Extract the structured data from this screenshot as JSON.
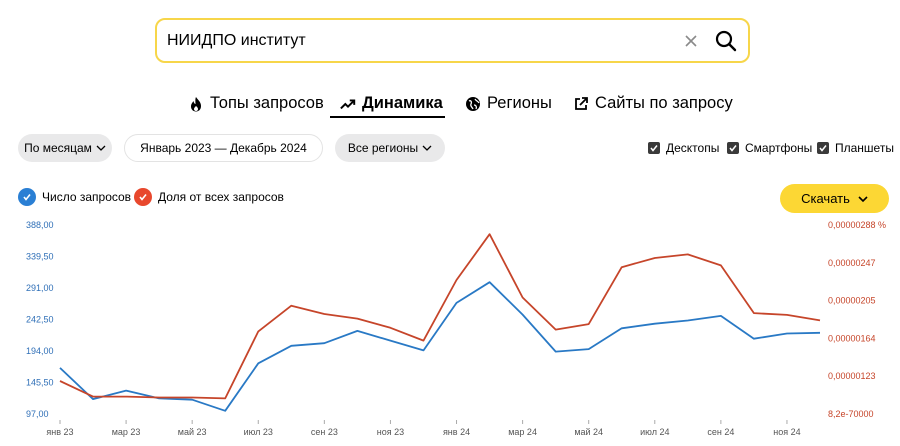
{
  "search": {
    "query": "НИИДПО институт"
  },
  "tabs": [
    {
      "label": "Топы запросов",
      "icon": "flame-icon"
    },
    {
      "label": "Динамика",
      "icon": "trend-icon"
    },
    {
      "label": "Регионы",
      "icon": "globe-icon"
    },
    {
      "label": "Сайты по запросу",
      "icon": "external-link-icon"
    }
  ],
  "filters": {
    "period": "По месяцам",
    "range": "Январь 2023 — Декабрь 2024",
    "region": "Все регионы"
  },
  "devices": [
    {
      "label": "Десктопы",
      "checked": true
    },
    {
      "label": "Смартфоны",
      "checked": true
    },
    {
      "label": "Планшеты",
      "checked": true
    }
  ],
  "legend": {
    "count": {
      "label": "Число запросов",
      "color": "#2a7fd4"
    },
    "share": {
      "label": "Доля от всех запросов",
      "color": "#e8482d"
    }
  },
  "download_label": "Скачать",
  "chart_data": {
    "type": "line",
    "x": [
      "янв 23",
      "фев 23",
      "мар 23",
      "апр 23",
      "май 23",
      "июн 23",
      "июл 23",
      "авг 23",
      "сен 23",
      "окт 23",
      "ноя 23",
      "дек 23",
      "янв 24",
      "фев 24",
      "мар 24",
      "апр 24",
      "май 24",
      "июн 24",
      "июл 24",
      "авг 24",
      "сен 24",
      "окт 24",
      "ноя 24",
      "дек 24"
    ],
    "x_tick_labels": [
      "янв 23",
      "мар 23",
      "май 23",
      "июл 23",
      "сен 23",
      "ноя 23",
      "янв 24",
      "мар 24",
      "май 24",
      "июл 24",
      "сен 24",
      "ноя 24"
    ],
    "left_axis": {
      "ticks": [
        "388,00",
        "339,50",
        "291,00",
        "242,50",
        "194,00",
        "145,50",
        "97,00"
      ],
      "ylim": [
        97,
        388
      ]
    },
    "right_axis": {
      "ticks": [
        "0,00000288 %",
        "0,00000247",
        "0,00000205",
        "0,00000164",
        "0,00000123",
        "8,2e-70000"
      ],
      "ylim": [
        8.2e-07,
        2.88e-06
      ]
    },
    "series": [
      {
        "name": "Число запросов",
        "axis": "left",
        "color": "#2979c5",
        "values": [
          168,
          120,
          133,
          121,
          119,
          102,
          175,
          202,
          206,
          225,
          210,
          195,
          268,
          300,
          250,
          193,
          197,
          229,
          236,
          241,
          248,
          213,
          221,
          222
        ]
      },
      {
        "name": "Доля от всех запросов",
        "axis": "right",
        "color": "#c6452a",
        "values": [
          1.18e-06,
          1.01e-06,
          1.01e-06,
          1e-06,
          1e-06,
          9.9e-07,
          1.72e-06,
          2e-06,
          1.91e-06,
          1.86e-06,
          1.76e-06,
          1.62e-06,
          2.28e-06,
          2.78e-06,
          2.09e-06,
          1.74e-06,
          1.8e-06,
          2.42e-06,
          2.52e-06,
          2.56e-06,
          2.44e-06,
          1.92e-06,
          1.9e-06,
          1.84e-06
        ]
      }
    ],
    "grid": false
  }
}
